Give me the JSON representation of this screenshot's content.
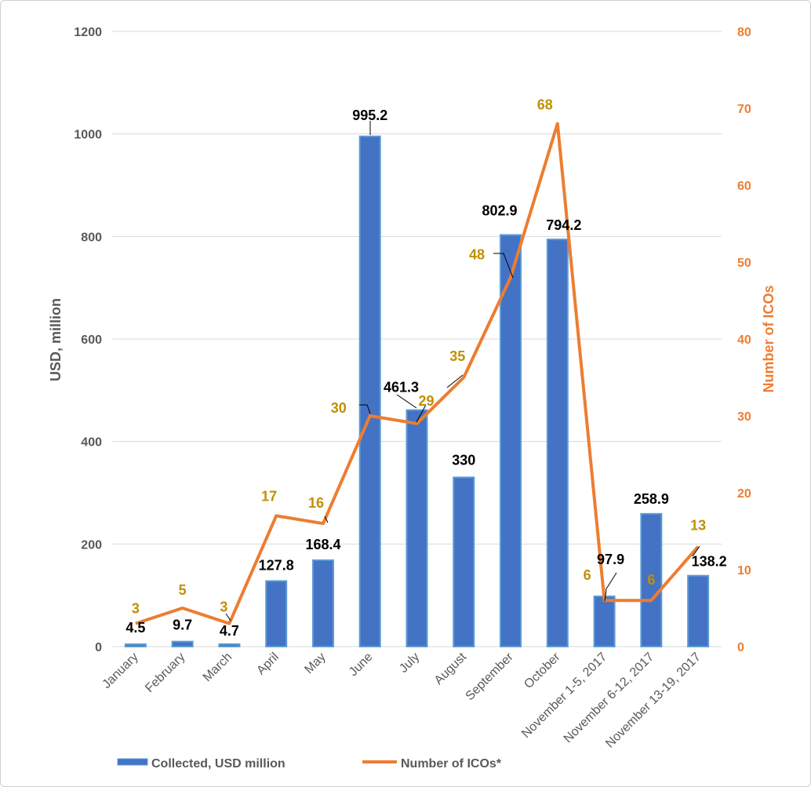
{
  "chart_data": {
    "type": "bar",
    "categories": [
      "January",
      "February",
      "March",
      "April",
      "May",
      "June",
      "July",
      "August",
      "September",
      "October",
      "November 1-5, 2017",
      "November 6-12, 2017",
      "November 13-19, 2017"
    ],
    "series": [
      {
        "name": "Collected, USD million",
        "type": "bar",
        "axis": "left",
        "values": [
          4.5,
          9.7,
          4.7,
          127.8,
          168.4,
          995.2,
          461.3,
          330,
          802.9,
          794.2,
          97.9,
          258.9,
          138.2
        ]
      },
      {
        "name": "Number of ICOs*",
        "type": "line",
        "axis": "right",
        "values": [
          3,
          5,
          3,
          17,
          16,
          30,
          29,
          35,
          48,
          68,
          6,
          6,
          13
        ]
      }
    ],
    "bar_labels": [
      "4.5",
      "9.7",
      "4.7",
      "127.8",
      "168.4",
      "995.2",
      "461.3",
      "330",
      "802.9",
      "794.2",
      "97.9",
      "258.9",
      "138.2"
    ],
    "line_labels": [
      "3",
      "5",
      "3",
      "17",
      "16",
      "30",
      "29",
      "35",
      "48",
      "68",
      "6",
      "6",
      "13"
    ],
    "ylabel": "USD, million",
    "y2label": "Number of ICOs",
    "ylim": [
      0,
      1200
    ],
    "y2lim": [
      0,
      80
    ],
    "yticks": [
      "0",
      "200",
      "400",
      "600",
      "800",
      "1000",
      "1200"
    ],
    "y2ticks": [
      "0",
      "10",
      "20",
      "30",
      "40",
      "50",
      "60",
      "70",
      "80"
    ],
    "grid": true,
    "legend": "bottom",
    "colors": {
      "bar": "#4472c4",
      "bar_edge": "#5b9bd5",
      "line": "#ed7d31",
      "line_label": "#bf9000",
      "grid": "#d9d9d9",
      "axis_text": "#595959"
    }
  }
}
